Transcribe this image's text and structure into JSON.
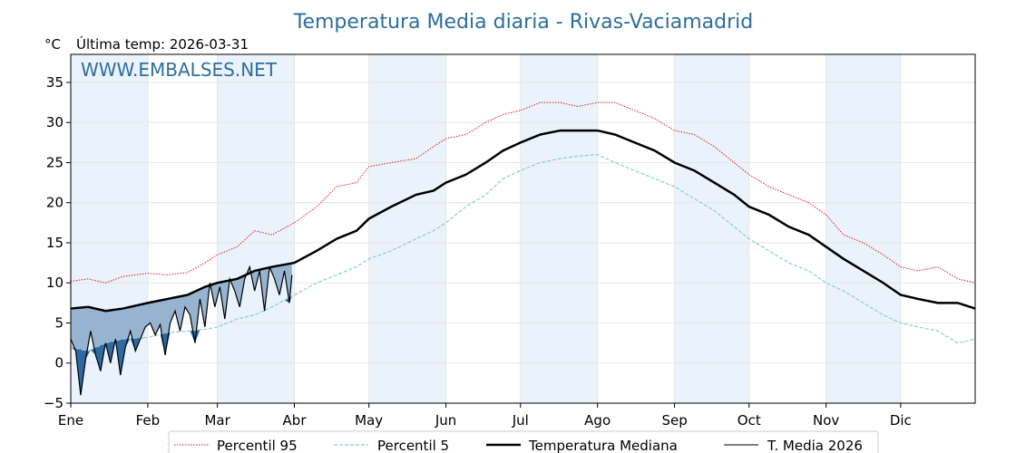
{
  "title": "Temperatura Media diaria - Rivas-Vaciamadrid",
  "unit_label": "°C",
  "last_temp_label": "Última temp: 2026-03-31",
  "watermark": "WWW.EMBALSES.NET",
  "colors": {
    "title": "#2e6e9e",
    "watermark": "#2e6e9e",
    "p95": "#e41a1c",
    "p5": "#8ecbdc",
    "median": "#000000",
    "media2026": "#000000",
    "fill_below_median": "#2e6aa0",
    "fill_above_median": "#96b4d0",
    "band": "#eaf2fb"
  },
  "chart_data": {
    "type": "line",
    "title": "Temperatura Media diaria - Rivas-Vaciamadrid",
    "ylabel": "°C",
    "xlabel": "",
    "x_unit": "day of year",
    "xlim": [
      1,
      365
    ],
    "ylim": [
      -5,
      38.5
    ],
    "yticks": [
      -5,
      0,
      5,
      10,
      15,
      20,
      25,
      30,
      35
    ],
    "ytick_labels": [
      "−5",
      "0",
      "5",
      "10",
      "15",
      "20",
      "25",
      "30",
      "35"
    ],
    "months": [
      {
        "label": "Ene",
        "day": 1
      },
      {
        "label": "Feb",
        "day": 32
      },
      {
        "label": "Mar",
        "day": 60
      },
      {
        "label": "Abr",
        "day": 91
      },
      {
        "label": "May",
        "day": 121
      },
      {
        "label": "Jun",
        "day": 152
      },
      {
        "label": "Jul",
        "day": 182
      },
      {
        "label": "Ago",
        "day": 213
      },
      {
        "label": "Sep",
        "day": 244
      },
      {
        "label": "Oct",
        "day": 274
      },
      {
        "label": "Nov",
        "day": 305
      },
      {
        "label": "Dic",
        "day": 335
      }
    ],
    "grid": true,
    "legend_position": "bottom",
    "series": [
      {
        "name": "Percentil 95",
        "style": "dotted",
        "x": [
          1,
          8,
          15,
          22,
          32,
          40,
          48,
          55,
          60,
          68,
          75,
          82,
          91,
          100,
          108,
          116,
          121,
          130,
          140,
          147,
          152,
          160,
          168,
          175,
          182,
          190,
          198,
          205,
          213,
          220,
          228,
          236,
          244,
          252,
          260,
          268,
          274,
          282,
          290,
          298,
          305,
          312,
          320,
          328,
          335,
          342,
          350,
          358,
          365
        ],
        "values": [
          10.2,
          10.5,
          10.0,
          10.8,
          11.2,
          11.0,
          11.3,
          12.5,
          13.5,
          14.5,
          16.5,
          16.0,
          17.5,
          19.5,
          22.0,
          22.5,
          24.5,
          25.0,
          25.5,
          27.0,
          28.0,
          28.5,
          30.0,
          31.0,
          31.5,
          32.5,
          32.5,
          32.0,
          32.5,
          32.5,
          31.5,
          30.5,
          29.0,
          28.5,
          27.0,
          25.0,
          23.5,
          22.0,
          21.0,
          20.0,
          18.5,
          16.0,
          15.0,
          13.5,
          12.0,
          11.5,
          12.0,
          10.5,
          10.0
        ]
      },
      {
        "name": "Percentil 5",
        "style": "dashed",
        "x": [
          1,
          8,
          15,
          22,
          32,
          40,
          48,
          55,
          60,
          68,
          75,
          82,
          91,
          100,
          108,
          116,
          121,
          130,
          140,
          147,
          152,
          160,
          168,
          175,
          182,
          190,
          198,
          205,
          213,
          220,
          228,
          236,
          244,
          252,
          260,
          268,
          274,
          282,
          290,
          298,
          305,
          312,
          320,
          328,
          335,
          342,
          350,
          358,
          365
        ],
        "values": [
          2.0,
          1.5,
          2.5,
          3.0,
          3.2,
          3.8,
          4.0,
          4.2,
          4.5,
          5.5,
          6.0,
          7.0,
          8.5,
          10.0,
          11.0,
          12.0,
          13.0,
          14.0,
          15.5,
          16.5,
          17.5,
          19.5,
          21.0,
          23.0,
          24.0,
          25.0,
          25.5,
          25.8,
          26.0,
          25.0,
          24.0,
          23.0,
          22.0,
          20.5,
          19.0,
          17.0,
          15.5,
          14.0,
          12.5,
          11.5,
          10.0,
          9.0,
          7.5,
          6.0,
          5.0,
          4.5,
          4.0,
          2.5,
          3.0
        ]
      },
      {
        "name": "Temperatura Mediana",
        "style": "solid-thick",
        "x": [
          1,
          8,
          15,
          22,
          32,
          40,
          48,
          55,
          60,
          68,
          75,
          82,
          91,
          100,
          108,
          116,
          121,
          130,
          140,
          147,
          152,
          160,
          168,
          175,
          182,
          190,
          198,
          205,
          213,
          220,
          228,
          236,
          244,
          252,
          260,
          268,
          274,
          282,
          290,
          298,
          305,
          312,
          320,
          328,
          335,
          342,
          350,
          358,
          365
        ],
        "values": [
          6.8,
          7.0,
          6.5,
          6.8,
          7.5,
          8.0,
          8.5,
          9.5,
          10.0,
          10.5,
          11.5,
          12.0,
          12.5,
          14.0,
          15.5,
          16.5,
          18.0,
          19.5,
          21.0,
          21.5,
          22.5,
          23.5,
          25.0,
          26.5,
          27.5,
          28.5,
          29.0,
          29.0,
          29.0,
          28.5,
          27.5,
          26.5,
          25.0,
          24.0,
          22.5,
          21.0,
          19.5,
          18.5,
          17.0,
          16.0,
          14.5,
          13.0,
          11.5,
          10.0,
          8.5,
          8.0,
          7.5,
          7.5,
          6.8
        ]
      },
      {
        "name": "T. Media 2026",
        "style": "solid-thin",
        "x": [
          1,
          3,
          5,
          7,
          9,
          11,
          13,
          15,
          17,
          19,
          21,
          23,
          25,
          27,
          29,
          31,
          33,
          35,
          37,
          39,
          41,
          43,
          45,
          47,
          49,
          51,
          53,
          55,
          57,
          59,
          61,
          63,
          65,
          67,
          69,
          71,
          73,
          75,
          77,
          79,
          81,
          83,
          85,
          87,
          89,
          90
        ],
        "values": [
          3.0,
          1.5,
          -4.0,
          0.5,
          4.0,
          1.0,
          -1.0,
          2.5,
          0.0,
          3.0,
          -1.5,
          2.0,
          4.0,
          1.5,
          3.0,
          4.5,
          5.0,
          3.5,
          4.8,
          1.0,
          5.0,
          6.5,
          4.0,
          7.0,
          6.0,
          2.5,
          8.0,
          4.5,
          10.0,
          7.0,
          9.5,
          5.5,
          10.5,
          9.0,
          7.0,
          10.5,
          12.0,
          9.0,
          11.5,
          6.5,
          12.0,
          10.5,
          8.5,
          11.5,
          7.5,
          11.0
        ]
      }
    ]
  },
  "legend": [
    {
      "label": "Percentil 95",
      "style": "dotted"
    },
    {
      "label": "Percentil 5",
      "style": "dashed"
    },
    {
      "label": "Temperatura Mediana",
      "style": "solid-thick"
    },
    {
      "label": "T. Media 2026",
      "style": "solid-thin"
    }
  ]
}
